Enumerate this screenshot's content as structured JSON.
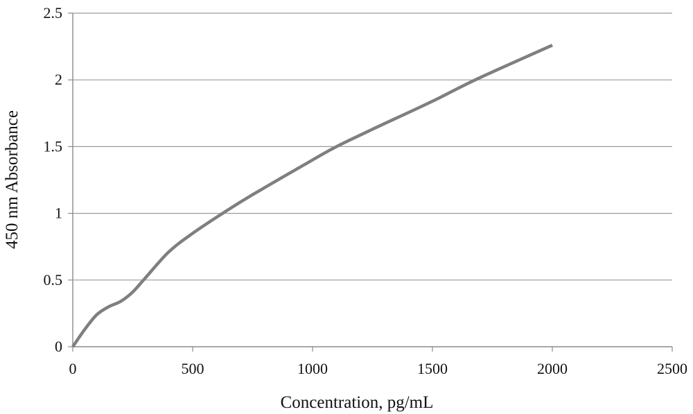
{
  "chart_data": {
    "type": "line",
    "title": "",
    "xlabel": "Concentration, pg/mL",
    "ylabel": "450 nm Absorbance",
    "xlim": [
      0,
      2500
    ],
    "ylim": [
      0,
      2.5
    ],
    "x_ticks": [
      "0",
      "500",
      "1000",
      "1500",
      "2000",
      "2500"
    ],
    "y_ticks": [
      "0",
      "0.5",
      "1",
      "1.5",
      "2",
      "2.5"
    ],
    "grid": "horizontal",
    "legend": "none",
    "series": [
      {
        "color": "#7f7f7f",
        "x": [
          0,
          50,
          100,
          150,
          200,
          250,
          300,
          400,
          500,
          625,
          750,
          1000,
          1100,
          1250,
          1500,
          1690,
          2000
        ],
        "y": [
          0,
          0.13,
          0.24,
          0.3,
          0.34,
          0.41,
          0.51,
          0.71,
          0.85,
          1.0,
          1.14,
          1.4,
          1.5,
          1.63,
          1.84,
          2.01,
          2.26
        ]
      }
    ]
  }
}
